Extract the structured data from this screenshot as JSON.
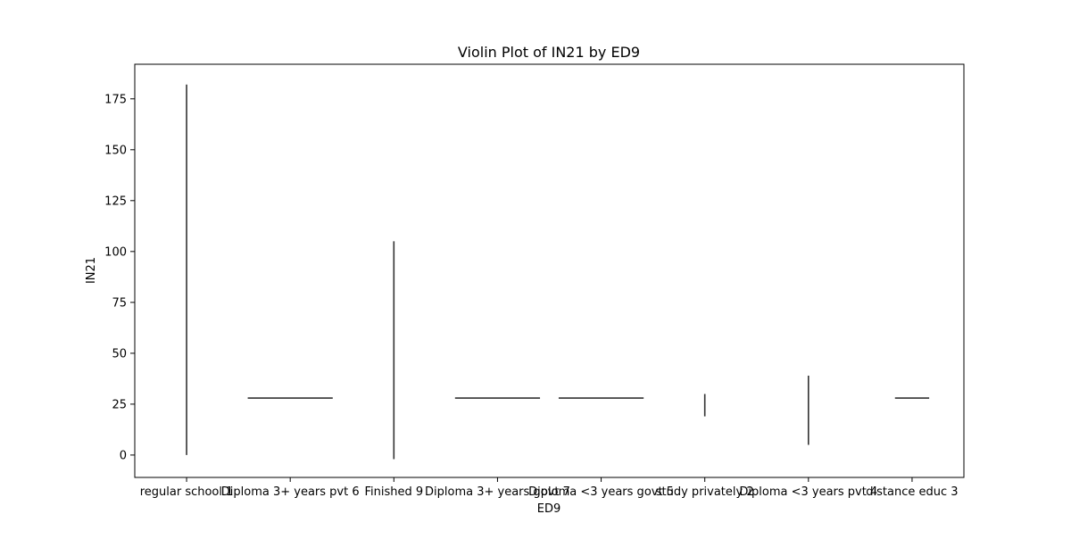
{
  "chart_data": {
    "type": "violin",
    "title": "Violin Plot of IN21 by ED9",
    "xlabel": "ED9",
    "ylabel": "IN21",
    "ylim": [
      -11,
      192
    ],
    "yticks": [
      0,
      25,
      50,
      75,
      100,
      125,
      150,
      175
    ],
    "grid": false,
    "categories": [
      "regular school 1",
      "Diploma 3+ years pvt 6",
      "Finished 9",
      "Diploma 3+ years govt 7",
      "Diploma <3 years govt 5",
      "study privately 2",
      "Diploma <3 years pvt 4",
      "distance educ 3"
    ],
    "violins": [
      {
        "category": "regular school 1",
        "min": 0,
        "max": 182,
        "shape": "vertical-line"
      },
      {
        "category": "Diploma 3+ years pvt 6",
        "min": 28,
        "max": 28,
        "shape": "horizontal-line",
        "width": 0.82
      },
      {
        "category": "Finished 9",
        "min": -2,
        "max": 105,
        "shape": "vertical-line"
      },
      {
        "category": "Diploma 3+ years govt 7",
        "min": 28,
        "max": 28,
        "shape": "horizontal-line",
        "width": 0.82
      },
      {
        "category": "Diploma <3 years govt 5",
        "min": 28,
        "max": 28,
        "shape": "horizontal-line",
        "width": 0.82
      },
      {
        "category": "study privately 2",
        "min": 19,
        "max": 30,
        "shape": "vertical-line"
      },
      {
        "category": "Diploma <3 years pvt 4",
        "min": 5,
        "max": 39,
        "shape": "vertical-line"
      },
      {
        "category": "distance educ 3",
        "min": 28,
        "max": 28,
        "shape": "horizontal-line",
        "width": 0.33
      }
    ],
    "colors": {
      "violin": "#333333",
      "axes": "#000000",
      "background": "#ffffff"
    }
  }
}
